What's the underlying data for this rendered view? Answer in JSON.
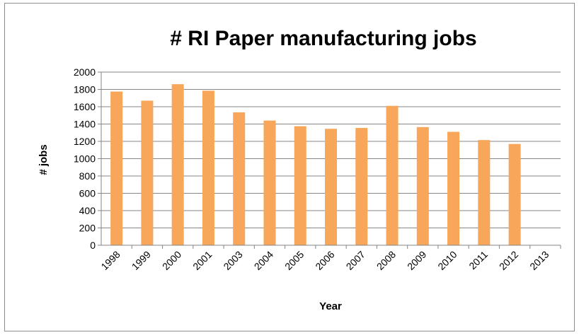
{
  "chart_data": {
    "type": "bar",
    "title": "# RI Paper manufacturing jobs",
    "xlabel": "Year",
    "ylabel": "# jobs",
    "categories": [
      "1998",
      "1999",
      "2000",
      "2001",
      "2003",
      "2004",
      "2005",
      "2006",
      "2007",
      "2008",
      "2009",
      "2010",
      "2011",
      "2012",
      "2013"
    ],
    "values": [
      1775,
      1670,
      1860,
      1785,
      1535,
      1440,
      1375,
      1345,
      1355,
      1610,
      1365,
      1310,
      1215,
      1170,
      null
    ],
    "ylim": [
      0,
      2000
    ],
    "yticks": [
      "0",
      "200",
      "400",
      "600",
      "800",
      "1000",
      "1200",
      "1400",
      "1600",
      "1800",
      "2000"
    ],
    "grid": true,
    "legend": "none",
    "bar_color": "#f7a65a"
  }
}
